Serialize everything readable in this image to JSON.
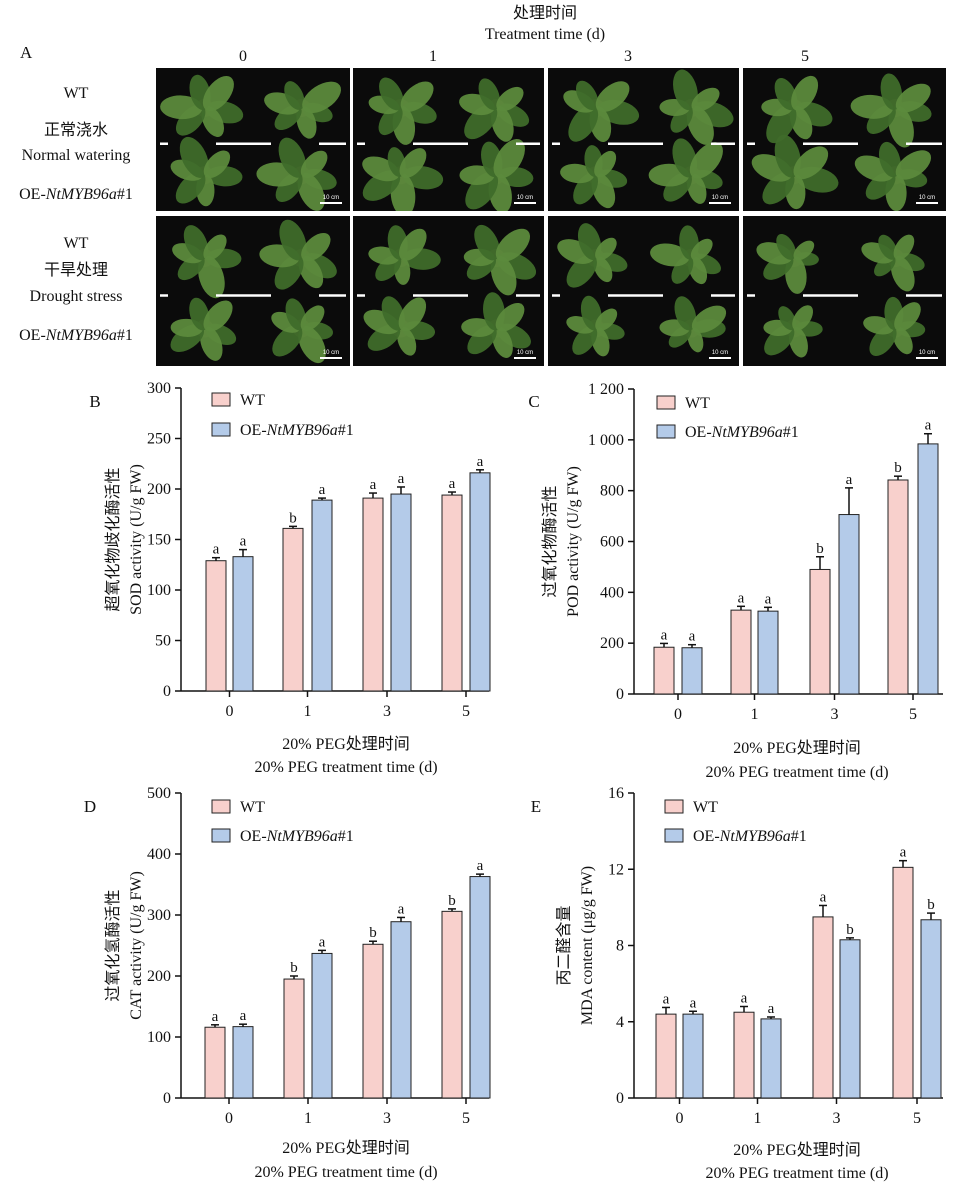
{
  "panel_a": {
    "letter": "A",
    "header_cn": "处理时间",
    "header_en": "Treatment time (d)",
    "days": [
      "0",
      "1",
      "3",
      "5"
    ],
    "rows": [
      {
        "wt": "WT",
        "cond_cn": "正常浇水",
        "cond_en": "Normal watering",
        "oe_prefix": "OE-",
        "oe_gene": "NtMYB96a",
        "oe_suffix": "#1"
      },
      {
        "wt": "WT",
        "cond_cn": "干旱处理",
        "cond_en": "Drought stress",
        "oe_prefix": "OE-",
        "oe_gene": "NtMYB96a",
        "oe_suffix": "#1"
      }
    ],
    "scale_label": "10 cm",
    "colors": {
      "background": "#0b0b0b",
      "leaf": "#5c8a3c",
      "leaf_dark": "#3f6b2a",
      "pot": "#5a3b2a",
      "divider": "#ffffff"
    }
  },
  "chart_data": [
    {
      "type": "bar",
      "letter": "B",
      "categories": [
        "0",
        "1",
        "3",
        "5"
      ],
      "series": [
        {
          "name": "WT",
          "color": "#f8d0cc",
          "values": [
            129,
            161,
            191,
            194
          ],
          "errors": [
            3,
            2,
            5,
            3
          ],
          "letters": [
            "a",
            "b",
            "a",
            "a"
          ]
        },
        {
          "name_prefix": "OE-",
          "name_gene": "NtMYB96a",
          "name_suffix": "#1",
          "color": "#b4cbe9",
          "values": [
            133,
            189,
            195,
            216
          ],
          "errors": [
            7,
            2,
            7,
            3
          ],
          "letters": [
            "a",
            "a",
            "a",
            "a"
          ]
        }
      ],
      "ylabel_cn": "超氧化物歧化酶活性",
      "ylabel_en": "SOD activity (U/g FW)",
      "xlabel_cn": "20% PEG处理时间",
      "xlabel_en": "20% PEG treatment time (d)",
      "ylim": [
        0,
        300
      ],
      "yticks": [
        0,
        50,
        100,
        150,
        200,
        250,
        300
      ],
      "ytick_labels": [
        "0",
        "50",
        "100",
        "150",
        "200",
        "250",
        "300"
      ]
    },
    {
      "type": "bar",
      "letter": "C",
      "categories": [
        "0",
        "1",
        "3",
        "5"
      ],
      "series": [
        {
          "name": "WT",
          "color": "#f8d0cc",
          "values": [
            184,
            330,
            490,
            842
          ],
          "errors": [
            15,
            15,
            50,
            15
          ],
          "letters": [
            "a",
            "a",
            "b",
            "b"
          ]
        },
        {
          "name_prefix": "OE-",
          "name_gene": "NtMYB96a",
          "name_suffix": "#1",
          "color": "#b4cbe9",
          "values": [
            182,
            326,
            706,
            984
          ],
          "errors": [
            12,
            15,
            105,
            40
          ],
          "letters": [
            "a",
            "a",
            "a",
            "a"
          ]
        }
      ],
      "ylabel_cn": "过氧化物酶活性",
      "ylabel_en": "POD activity (U/g FW)",
      "xlabel_cn": "20% PEG处理时间",
      "xlabel_en": "20% PEG treatment time (d)",
      "ylim": [
        0,
        1200
      ],
      "yticks": [
        0,
        200,
        400,
        600,
        800,
        1000,
        1200
      ],
      "ytick_labels": [
        "0",
        "200",
        "400",
        "600",
        "800",
        "1 000",
        "1 200"
      ]
    },
    {
      "type": "bar",
      "letter": "D",
      "categories": [
        "0",
        "1",
        "3",
        "5"
      ],
      "series": [
        {
          "name": "WT",
          "color": "#f8d0cc",
          "values": [
            116,
            195,
            252,
            306
          ],
          "errors": [
            4,
            5,
            5,
            4
          ],
          "letters": [
            "a",
            "b",
            "b",
            "b"
          ]
        },
        {
          "name_prefix": "OE-",
          "name_gene": "NtMYB96a",
          "name_suffix": "#1",
          "color": "#b4cbe9",
          "values": [
            117,
            237,
            289,
            363
          ],
          "errors": [
            4,
            5,
            7,
            4
          ],
          "letters": [
            "a",
            "a",
            "a",
            "a"
          ]
        }
      ],
      "ylabel_cn": "过氧化氢酶活性",
      "ylabel_en": "CAT activity  (U/g FW)",
      "xlabel_cn": "20% PEG处理时间",
      "xlabel_en": "20% PEG treatment time (d)",
      "ylim": [
        0,
        500
      ],
      "yticks": [
        0,
        100,
        200,
        300,
        400,
        500
      ],
      "ytick_labels": [
        "0",
        "100",
        "200",
        "300",
        "400",
        "500"
      ]
    },
    {
      "type": "bar",
      "letter": "E",
      "categories": [
        "0",
        "1",
        "3",
        "5"
      ],
      "series": [
        {
          "name": "WT",
          "color": "#f8d0cc",
          "values": [
            4.4,
            4.5,
            9.5,
            12.1
          ],
          "errors": [
            0.35,
            0.3,
            0.6,
            0.35
          ],
          "letters": [
            "a",
            "a",
            "a",
            "a"
          ]
        },
        {
          "name_prefix": "OE-",
          "name_gene": "NtMYB96a",
          "name_suffix": "#1",
          "color": "#b4cbe9",
          "values": [
            4.4,
            4.15,
            8.3,
            9.35
          ],
          "errors": [
            0.15,
            0.1,
            0.1,
            0.35
          ],
          "letters": [
            "a",
            "a",
            "b",
            "b"
          ]
        }
      ],
      "ylabel_cn": "丙二醛含量",
      "ylabel_en": "MDA content  (μg/g FW)",
      "xlabel_cn": "20% PEG处理时间",
      "xlabel_en": "20% PEG treatment time (d)",
      "ylim": [
        0,
        16
      ],
      "yticks": [
        0,
        4,
        8,
        12,
        16
      ],
      "ytick_labels": [
        "0",
        "4",
        "8",
        "12",
        "16"
      ]
    }
  ]
}
